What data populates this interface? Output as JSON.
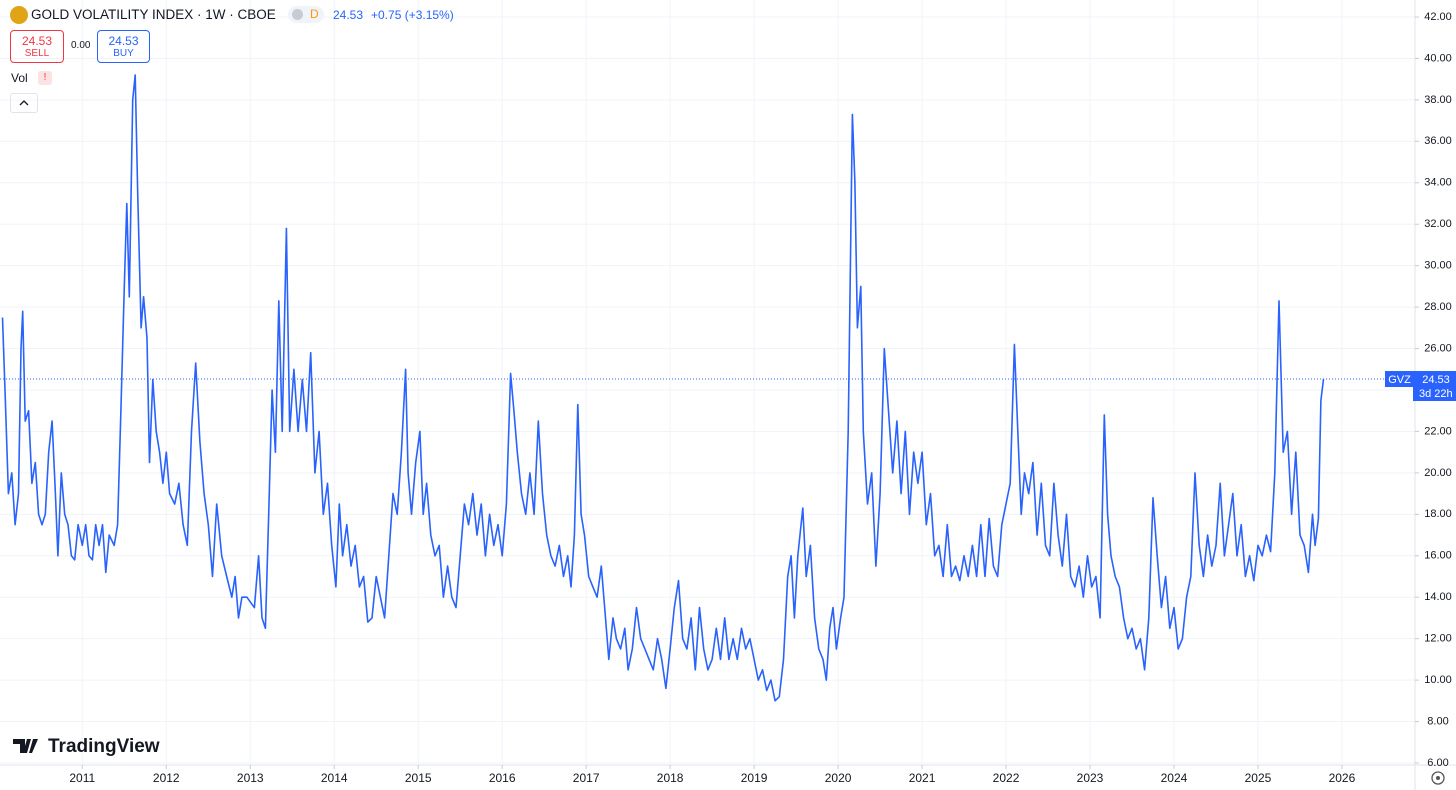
{
  "header": {
    "interval_badge": "D",
    "price": "24.53",
    "change": "+0.75 (+3.15%)",
    "sell_price": "24.53",
    "sell_label": "SELL",
    "spread": "0.00",
    "buy_price": "24.53",
    "buy_label": "BUY",
    "volume_label": "Vol",
    "volume_alert": "!",
    "brand": "TradingView"
  },
  "chart_data": {
    "type": "line",
    "title": "GOLD VOLATILITY INDEX · 1W · CBOE",
    "x": [
      2010.05,
      2010.08,
      2010.12,
      2010.16,
      2010.2,
      2010.24,
      2010.27,
      2010.29,
      2010.32,
      2010.36,
      2010.4,
      2010.44,
      2010.48,
      2010.52,
      2010.56,
      2010.6,
      2010.64,
      2010.68,
      2010.71,
      2010.75,
      2010.79,
      2010.83,
      2010.87,
      2010.91,
      2010.95,
      2011.0,
      2011.04,
      2011.08,
      2011.12,
      2011.16,
      2011.2,
      2011.24,
      2011.28,
      2011.32,
      2011.38,
      2011.42,
      2011.46,
      2011.5,
      2011.53,
      2011.56,
      2011.6,
      2011.63,
      2011.66,
      2011.7,
      2011.73,
      2011.77,
      2011.8,
      2011.84,
      2011.88,
      2011.92,
      2011.96,
      2012.0,
      2012.04,
      2012.1,
      2012.15,
      2012.2,
      2012.25,
      2012.3,
      2012.35,
      2012.4,
      2012.45,
      2012.5,
      2012.55,
      2012.6,
      2012.66,
      2012.72,
      2012.78,
      2012.82,
      2012.86,
      2012.9,
      2012.96,
      2013.05,
      2013.1,
      2013.14,
      2013.18,
      2013.22,
      2013.26,
      2013.3,
      2013.34,
      2013.38,
      2013.43,
      2013.47,
      2013.52,
      2013.57,
      2013.62,
      2013.67,
      2013.72,
      2013.77,
      2013.82,
      2013.87,
      2013.92,
      2013.97,
      2014.02,
      2014.06,
      2014.1,
      2014.15,
      2014.2,
      2014.25,
      2014.3,
      2014.35,
      2014.4,
      2014.45,
      2014.5,
      2014.55,
      2014.6,
      2014.65,
      2014.7,
      2014.75,
      2014.8,
      2014.85,
      2014.88,
      2014.92,
      2014.97,
      2015.02,
      2015.06,
      2015.1,
      2015.15,
      2015.2,
      2015.25,
      2015.3,
      2015.35,
      2015.4,
      2015.45,
      2015.5,
      2015.55,
      2015.6,
      2015.65,
      2015.7,
      2015.75,
      2015.8,
      2015.85,
      2015.9,
      2015.95,
      2016.0,
      2016.05,
      2016.1,
      2016.14,
      2016.18,
      2016.23,
      2016.28,
      2016.33,
      2016.38,
      2016.43,
      2016.48,
      2016.53,
      2016.58,
      2016.63,
      2016.68,
      2016.73,
      2016.78,
      2016.82,
      2016.86,
      2016.9,
      2016.94,
      2016.98,
      2017.03,
      2017.08,
      2017.13,
      2017.18,
      2017.23,
      2017.27,
      2017.32,
      2017.36,
      2017.41,
      2017.46,
      2017.5,
      2017.55,
      2017.6,
      2017.65,
      2017.7,
      2017.75,
      2017.8,
      2017.85,
      2017.9,
      2017.95,
      2018.0,
      2018.05,
      2018.1,
      2018.15,
      2018.2,
      2018.25,
      2018.3,
      2018.35,
      2018.4,
      2018.45,
      2018.5,
      2018.55,
      2018.6,
      2018.65,
      2018.7,
      2018.75,
      2018.8,
      2018.85,
      2018.9,
      2018.95,
      2019.0,
      2019.05,
      2019.1,
      2019.15,
      2019.2,
      2019.25,
      2019.3,
      2019.35,
      2019.4,
      2019.44,
      2019.48,
      2019.52,
      2019.58,
      2019.62,
      2019.67,
      2019.72,
      2019.77,
      2019.82,
      2019.86,
      2019.9,
      2019.94,
      2019.98,
      2020.03,
      2020.07,
      2020.12,
      2020.17,
      2020.2,
      2020.23,
      2020.27,
      2020.3,
      2020.35,
      2020.4,
      2020.45,
      2020.5,
      2020.55,
      2020.6,
      2020.65,
      2020.7,
      2020.75,
      2020.8,
      2020.85,
      2020.9,
      2020.95,
      2021.0,
      2021.05,
      2021.1,
      2021.15,
      2021.2,
      2021.25,
      2021.3,
      2021.35,
      2021.4,
      2021.45,
      2021.5,
      2021.55,
      2021.6,
      2021.65,
      2021.7,
      2021.75,
      2021.8,
      2021.85,
      2021.9,
      2021.95,
      2022.0,
      2022.05,
      2022.1,
      2022.14,
      2022.18,
      2022.22,
      2022.27,
      2022.32,
      2022.37,
      2022.42,
      2022.47,
      2022.52,
      2022.57,
      2022.62,
      2022.67,
      2022.72,
      2022.77,
      2022.82,
      2022.87,
      2022.92,
      2022.97,
      2023.02,
      2023.07,
      2023.12,
      2023.17,
      2023.21,
      2023.25,
      2023.3,
      2023.35,
      2023.4,
      2023.45,
      2023.5,
      2023.55,
      2023.6,
      2023.65,
      2023.7,
      2023.75,
      2023.8,
      2023.85,
      2023.9,
      2023.95,
      2024.0,
      2024.05,
      2024.1,
      2024.15,
      2024.2,
      2024.25,
      2024.3,
      2024.35,
      2024.4,
      2024.45,
      2024.5,
      2024.55,
      2024.6,
      2024.65,
      2024.7,
      2024.75,
      2024.8,
      2024.85,
      2024.9,
      2024.95,
      2025.0,
      2025.05,
      2025.1,
      2025.15,
      2025.2,
      2025.25,
      2025.3,
      2025.35,
      2025.4,
      2025.45,
      2025.5,
      2025.55,
      2025.6,
      2025.65,
      2025.68,
      2025.72,
      2025.75,
      2025.78
    ],
    "series": [
      {
        "name": "GVZ",
        "color": "#2962ff",
        "values": [
          27.5,
          24,
          19,
          20,
          17.5,
          19,
          26,
          27.8,
          22.5,
          23,
          19.5,
          20.5,
          18,
          17.5,
          18,
          21,
          22.5,
          19,
          16,
          20,
          18,
          17.5,
          16,
          15.8,
          17.5,
          16.5,
          17.5,
          16,
          15.8,
          17.5,
          16.5,
          17.5,
          15.2,
          17,
          16.5,
          17.5,
          23,
          29,
          33,
          28.5,
          38,
          39.2,
          33.5,
          27,
          28.5,
          26.5,
          20.5,
          24.5,
          22,
          21,
          19.5,
          21,
          19,
          18.5,
          19.5,
          17.5,
          16.5,
          22,
          25.3,
          21.5,
          19,
          17.5,
          15,
          18.5,
          16,
          15,
          14,
          15,
          13,
          14,
          14,
          13.5,
          16,
          13,
          12.5,
          18,
          24,
          21,
          28.3,
          22,
          31.8,
          22,
          25,
          22,
          24.5,
          22,
          25.8,
          20,
          22,
          18,
          19.5,
          16.5,
          14.5,
          18.5,
          16,
          17.5,
          15.5,
          16.5,
          14.5,
          15,
          12.8,
          13,
          15,
          14,
          13,
          16,
          19,
          18,
          21,
          25,
          20,
          18,
          20.5,
          22,
          18,
          19.5,
          17,
          16,
          16.5,
          14,
          15.5,
          14,
          13.5,
          16,
          18.5,
          17.5,
          19,
          17,
          18.5,
          16,
          18,
          16.5,
          17.5,
          16,
          18.5,
          24.8,
          23,
          21,
          19,
          18,
          20,
          18,
          22.5,
          19,
          17,
          16,
          15.5,
          16.5,
          15,
          16,
          14.5,
          17,
          23.3,
          18,
          17,
          15,
          14.5,
          14,
          15.5,
          13,
          11,
          13,
          12,
          11.5,
          12.5,
          10.5,
          11.5,
          13.5,
          12,
          11.5,
          11,
          10.5,
          12,
          11,
          9.6,
          11.5,
          13.5,
          14.8,
          12,
          11.5,
          13,
          10.5,
          13.5,
          11.5,
          10.5,
          11,
          12.5,
          11,
          13,
          11,
          12,
          11,
          12.5,
          11.5,
          12,
          11,
          10,
          10.5,
          9.5,
          10,
          9,
          9.2,
          11,
          15,
          16,
          13,
          16,
          18.3,
          15,
          16.5,
          13,
          11.5,
          11,
          10,
          12.5,
          13.5,
          11.5,
          13,
          14,
          22,
          37.3,
          34,
          27,
          29,
          22,
          18.5,
          20,
          15.5,
          19,
          26,
          23,
          20,
          22.5,
          19,
          22,
          18,
          21,
          19.5,
          21,
          17.5,
          19,
          16,
          16.5,
          15,
          17.5,
          15,
          15.5,
          14.8,
          16,
          15,
          16.5,
          15,
          17.5,
          15,
          17.8,
          15.5,
          15,
          17.5,
          18.5,
          19.5,
          26.2,
          22,
          18,
          20,
          19,
          20.5,
          17,
          19.5,
          16.5,
          16,
          19.5,
          17,
          15.5,
          18,
          15,
          14.5,
          15.5,
          14,
          16,
          14.5,
          15,
          13,
          22.8,
          18,
          16,
          15,
          14.5,
          13,
          12,
          12.5,
          11.5,
          12,
          10.5,
          13,
          18.8,
          16,
          13.5,
          15,
          12.5,
          13.5,
          11.5,
          12,
          14,
          15,
          20,
          16.5,
          15,
          17,
          15.5,
          16.5,
          19.5,
          16,
          17.5,
          19,
          16,
          17.5,
          15,
          16,
          14.8,
          16.5,
          16,
          17,
          16.2,
          20,
          28.3,
          21,
          22,
          18,
          21,
          17,
          16.5,
          15.2,
          18,
          16.5,
          17.8,
          23.5,
          24.53
        ]
      }
    ],
    "last_value": 24.53,
    "last_value_countdown": "3d 22h",
    "xlim": [
      2010.02,
      2026.87
    ],
    "xticks": [
      2011,
      2012,
      2013,
      2014,
      2015,
      2016,
      2017,
      2018,
      2019,
      2020,
      2021,
      2022,
      2023,
      2024,
      2025,
      2026
    ],
    "ylim": [
      6,
      42
    ],
    "yticks": [
      {
        "value": 6,
        "label": "6.00"
      },
      {
        "value": 8,
        "label": "8.00"
      },
      {
        "value": 10,
        "label": "10.00"
      },
      {
        "value": 12,
        "label": "12.00"
      },
      {
        "value": 14,
        "label": "14.00"
      },
      {
        "value": 16,
        "label": "16.00"
      },
      {
        "value": 18,
        "label": "18.00"
      },
      {
        "value": 20,
        "label": "20.00"
      },
      {
        "value": 22,
        "label": "22.00"
      },
      {
        "value": 24,
        "label": "24.00"
      },
      {
        "value": 26,
        "label": "26.00"
      },
      {
        "value": 28,
        "label": "28.00"
      },
      {
        "value": 30,
        "label": "30.00"
      },
      {
        "value": 32,
        "label": "32.00"
      },
      {
        "value": 34,
        "label": "34.00"
      },
      {
        "value": 36,
        "label": "36.00"
      },
      {
        "value": 38,
        "label": "38.00"
      },
      {
        "value": 40,
        "label": "40.00"
      },
      {
        "value": 42,
        "label": "42.00"
      }
    ],
    "grid": true,
    "y_axis_side": "right"
  }
}
